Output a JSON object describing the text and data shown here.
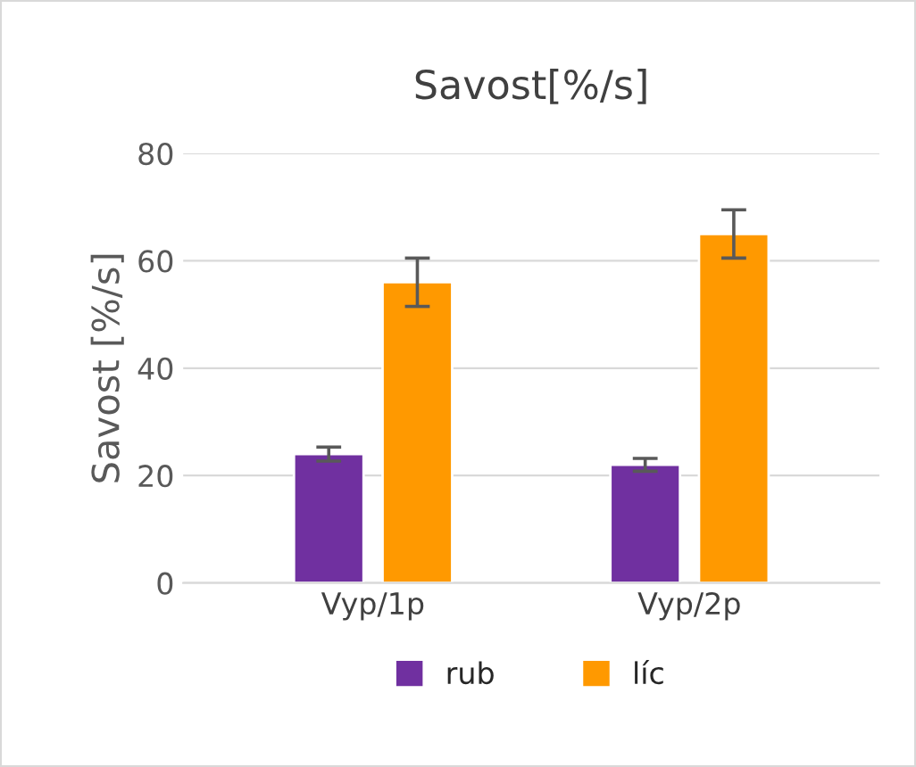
{
  "chart_data": {
    "type": "bar",
    "title": "Savost[%/s]",
    "ylabel": "Savost [%/s]",
    "categories": [
      "Vyp/1p",
      "Vyp/2p"
    ],
    "series": [
      {
        "name": "rub",
        "color": "#7030a0",
        "values": [
          24,
          22
        ],
        "errors": [
          1.3,
          1.2
        ]
      },
      {
        "name": "líc",
        "color": "#ff9900",
        "values": [
          56,
          65
        ],
        "errors": [
          4.5,
          4.5
        ]
      }
    ],
    "ylim": [
      0,
      80
    ],
    "yticks": [
      0,
      20,
      40,
      60,
      80
    ],
    "grid": "y",
    "legend": "bottom"
  }
}
